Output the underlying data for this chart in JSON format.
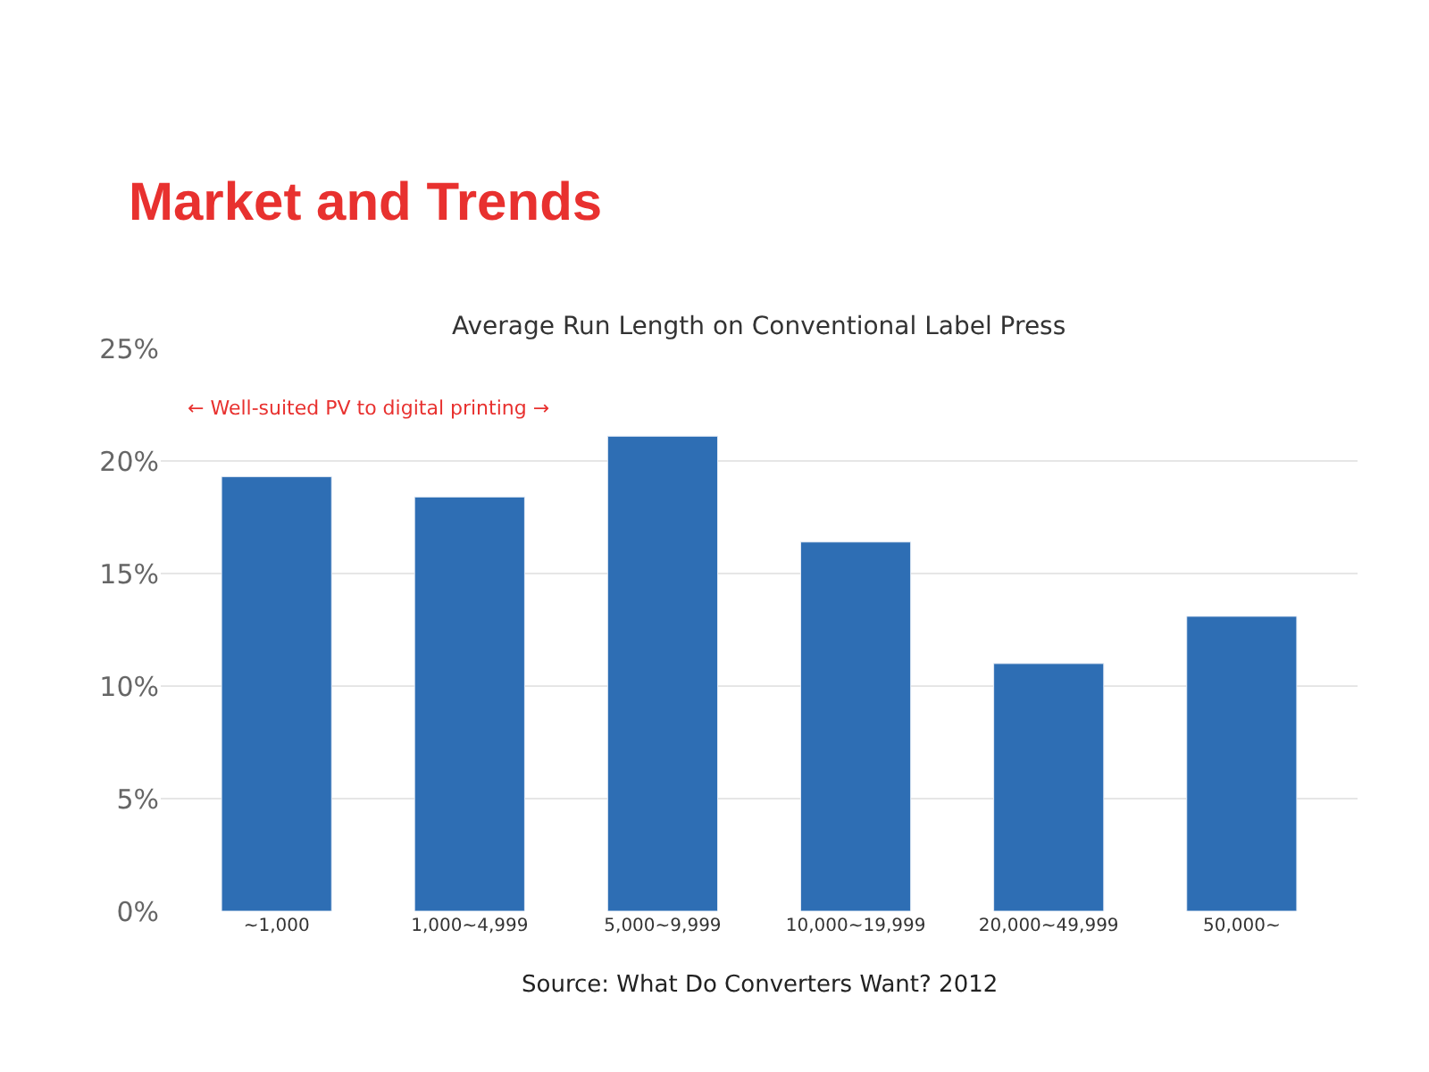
{
  "chart_data": {
    "type": "bar",
    "title": "Market and Trends",
    "subtitle": "Average Run Length on Conventional Label Press",
    "categories": [
      "~1,000",
      "1,000~4,999",
      "5,000~9,999",
      "10,000~19,999",
      "20,000~49,999",
      "50,000~"
    ],
    "values": [
      19.3,
      18.4,
      21.1,
      16.4,
      11.0,
      13.1
    ],
    "color": "#2e6eb4",
    "ylim": [
      0,
      25
    ],
    "yticks": [
      {
        "value": 0,
        "label": "0%"
      },
      {
        "value": 5,
        "label": "5%"
      },
      {
        "value": 10,
        "label": "10%"
      },
      {
        "value": 15,
        "label": "15%"
      },
      {
        "value": 20,
        "label": "20%"
      },
      {
        "value": 25,
        "label": "25%"
      }
    ],
    "grid": "y",
    "legend": false,
    "annotations": [
      "← Well-suited PV to digital printing →",
      "Source: What Do Converters Want? 2012"
    ]
  }
}
